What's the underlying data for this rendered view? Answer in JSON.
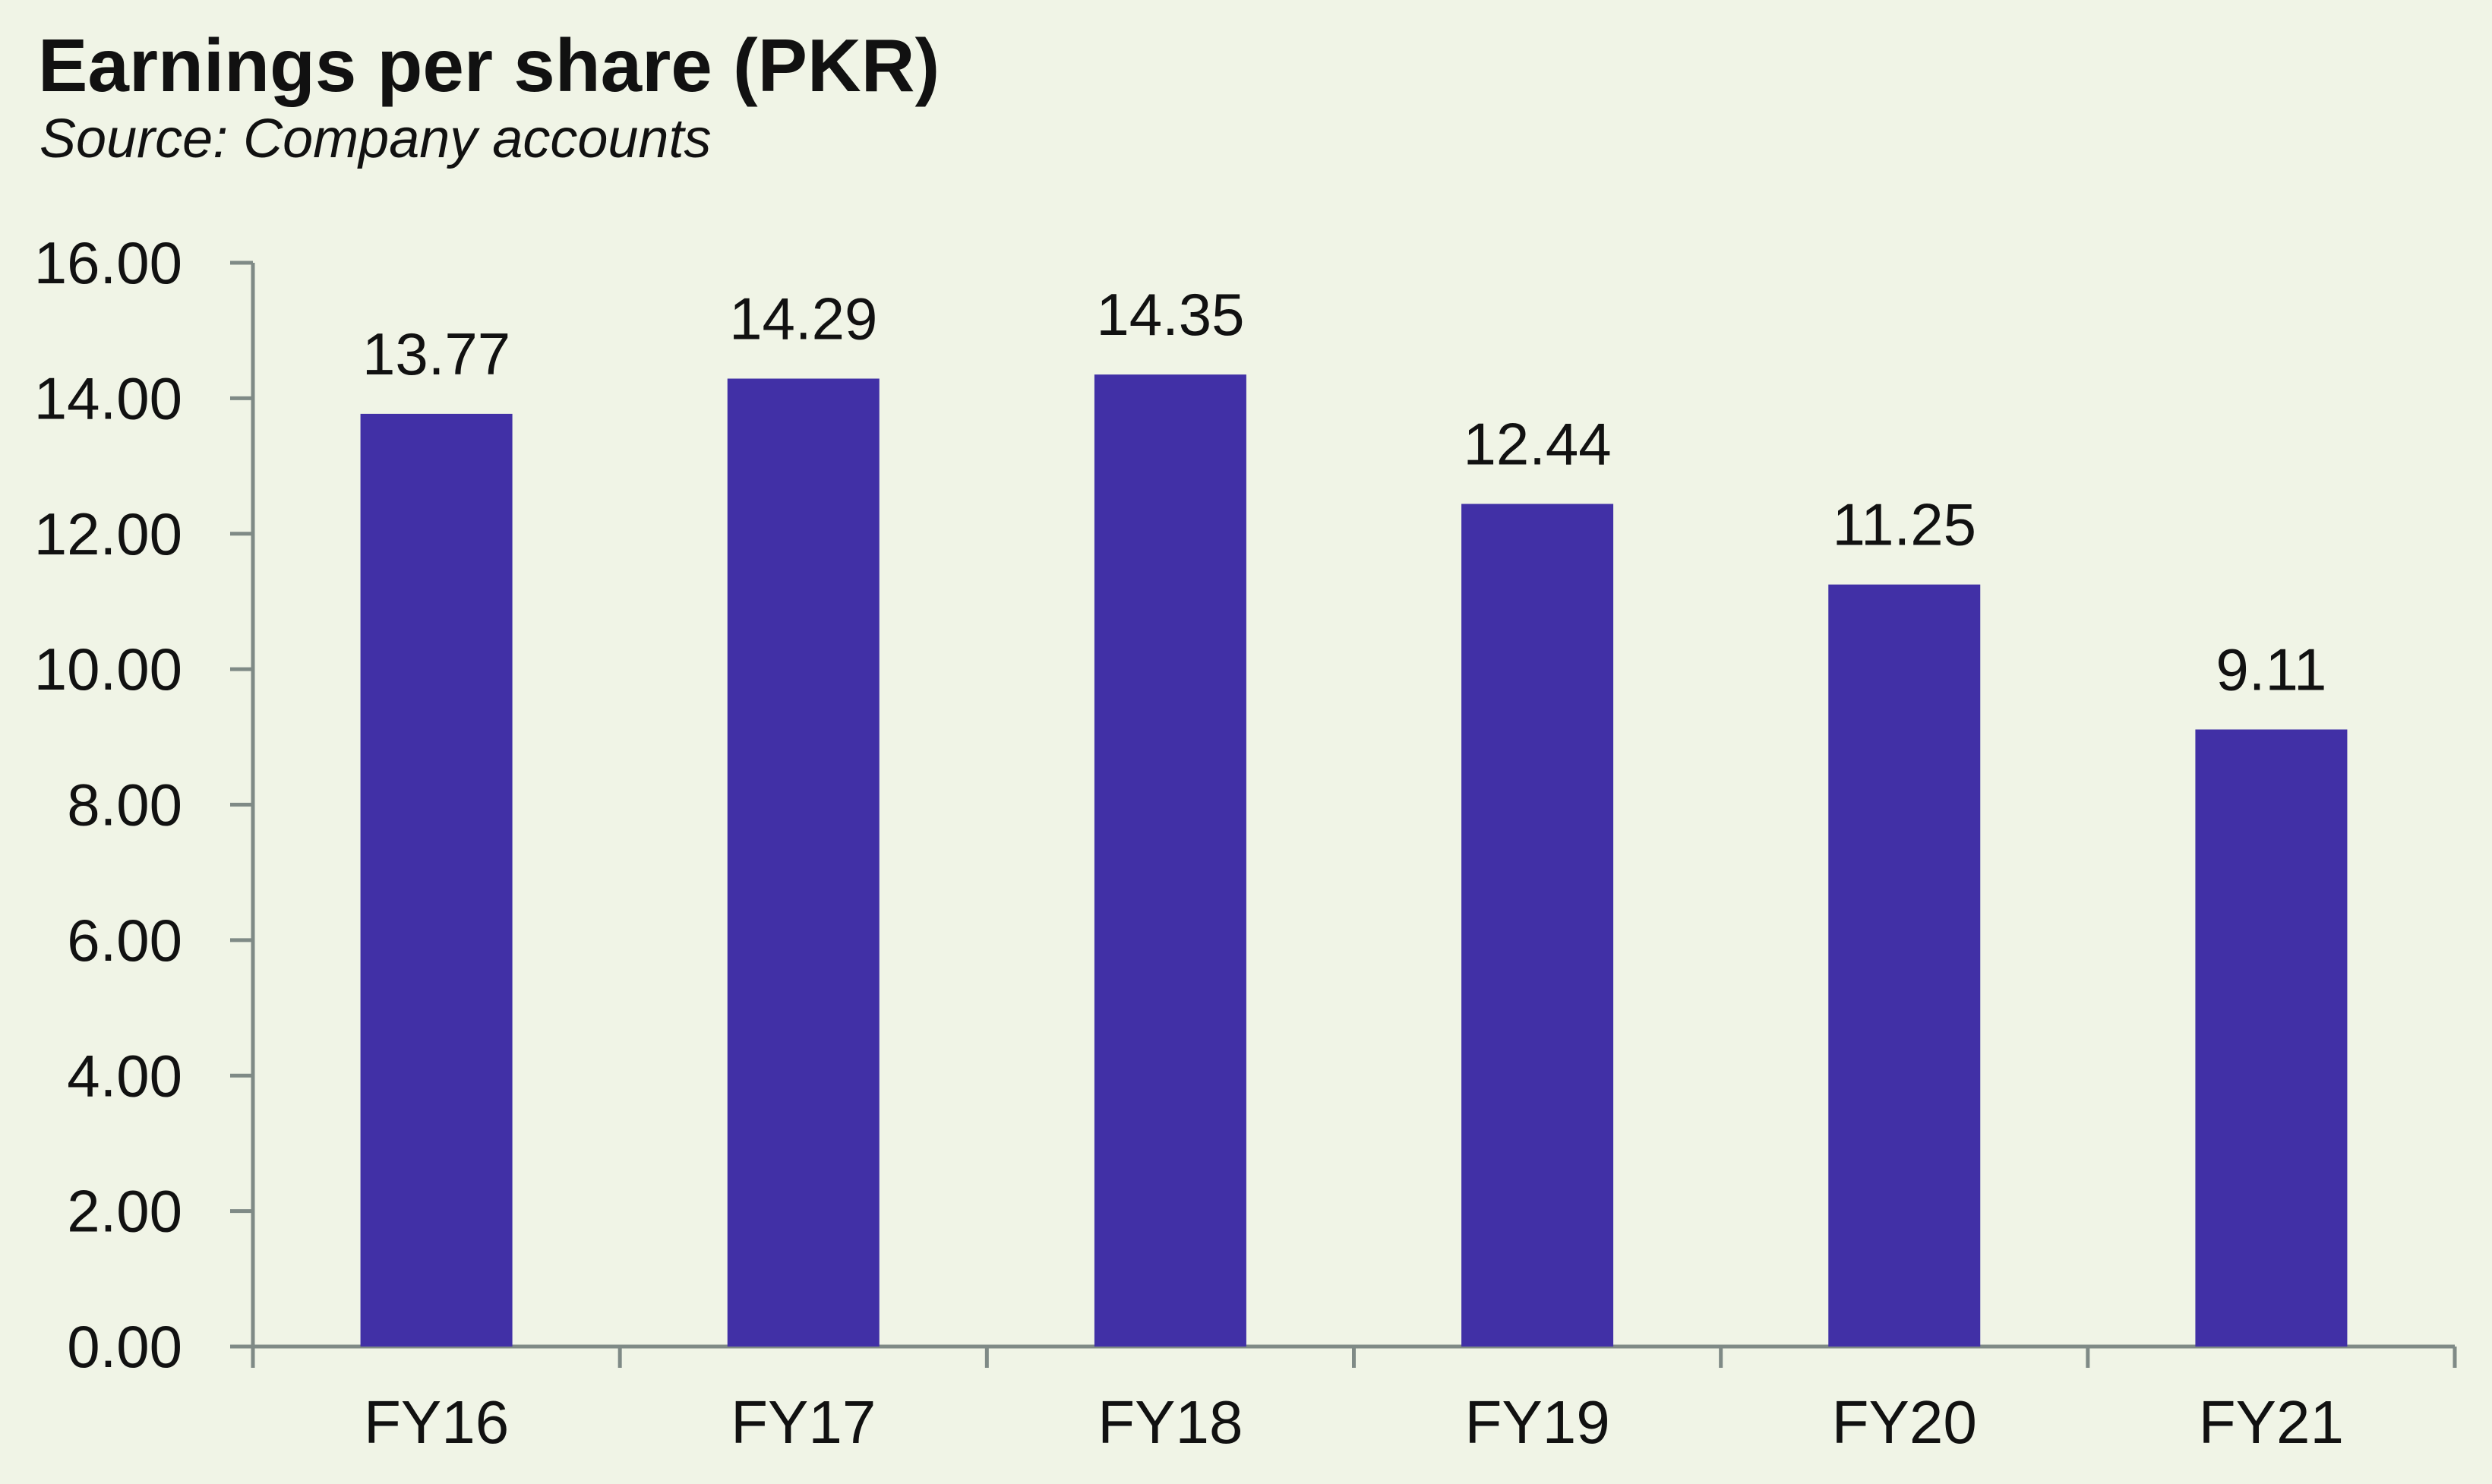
{
  "chart_data": {
    "type": "bar",
    "title": "Earnings per share (PKR)",
    "subtitle": "Source: Company accounts",
    "categories": [
      "FY16",
      "FY17",
      "FY18",
      "FY19",
      "FY20",
      "FY21"
    ],
    "values": [
      13.77,
      14.29,
      14.35,
      12.44,
      11.25,
      9.11
    ],
    "data_labels": [
      "13.77",
      "14.29",
      "14.35",
      "12.44",
      "11.25",
      "9.11"
    ],
    "ylim": [
      0,
      16
    ],
    "yticks": [
      0,
      2,
      4,
      6,
      8,
      10,
      12,
      14,
      16
    ],
    "ytick_labels": [
      "0.00",
      "2.00",
      "4.00",
      "6.00",
      "8.00",
      "10.00",
      "12.00",
      "14.00",
      "16.00"
    ],
    "xlabel": "",
    "ylabel": "",
    "grid": false,
    "legend": "none",
    "bar_color": "#4130a6",
    "axis_color": "#7f8a86"
  }
}
